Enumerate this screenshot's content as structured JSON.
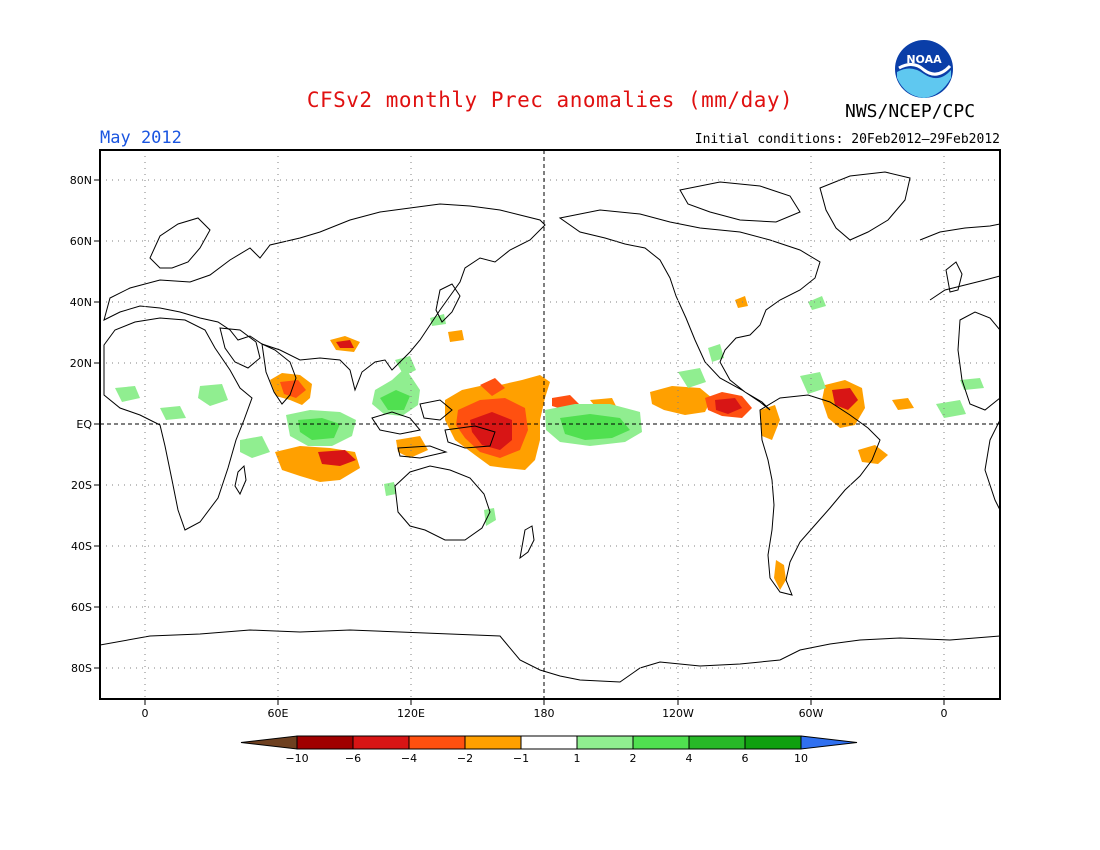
{
  "header": {
    "title": "CFSv2 monthly Prec anomalies (mm/day)",
    "month": "May 2012",
    "initial_conditions": "Initial conditions: 20Feb2012–29Feb2012",
    "agency": "NWS/NCEP/CPC",
    "logo_text": "NOAA"
  },
  "axes": {
    "y_ticks": [
      "80N",
      "60N",
      "40N",
      "20N",
      "EQ",
      "20S",
      "40S",
      "60S",
      "80S"
    ],
    "x_ticks": [
      "0",
      "60E",
      "120E",
      "180",
      "120W",
      "60W",
      "0"
    ]
  },
  "colorbar": {
    "labels": [
      "−10",
      "−6",
      "−4",
      "−2",
      "−1",
      "1",
      "2",
      "4",
      "6",
      "10"
    ],
    "colors": [
      "#6e4020",
      "#a00000",
      "#d81515",
      "#ff5010",
      "#ffa000",
      "#ffffff",
      "#90ee90",
      "#50e050",
      "#28b828",
      "#10a010",
      "#3070f0"
    ]
  },
  "map": {
    "projection": "equirectangular",
    "lon_range": [
      -20,
      380
    ],
    "lat_range": [
      -90,
      90
    ],
    "grid": true,
    "colors": {
      "neg_strong": "#d81515",
      "neg_mid": "#ff5010",
      "neg_weak": "#ffa000",
      "pos_weak": "#90ee90",
      "pos_mid": "#50e050"
    }
  }
}
